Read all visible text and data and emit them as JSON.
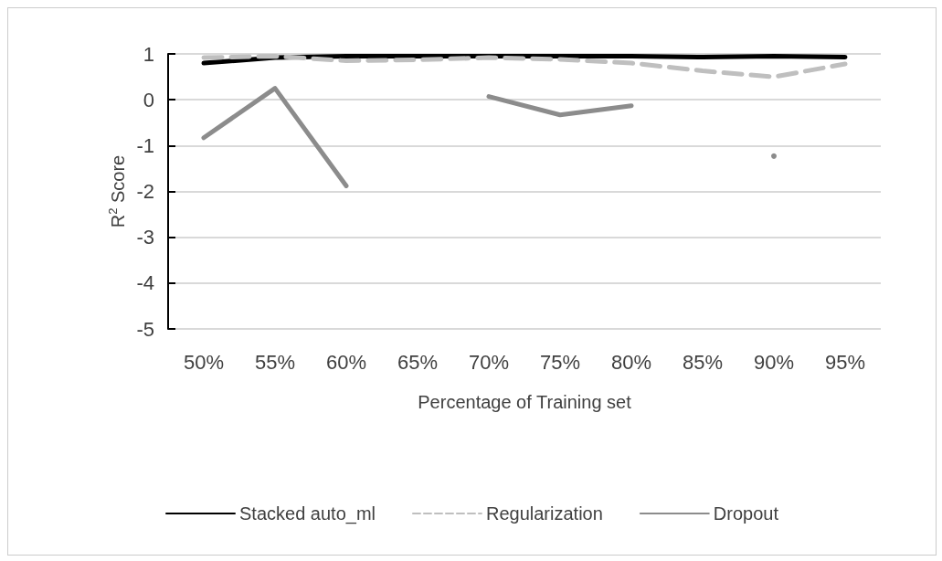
{
  "chart_data": {
    "type": "line",
    "xlabel": "Percentage of Training set",
    "ylabel": "R$^{2}$ Score",
    "categories": [
      "50%",
      "55%",
      "60%",
      "65%",
      "70%",
      "75%",
      "80%",
      "85%",
      "90%",
      "95%"
    ],
    "series": [
      {
        "name": "Stacked auto_ml",
        "color": "#000000",
        "line_style": "solid",
        "values": [
          0.8,
          0.92,
          0.95,
          0.95,
          0.95,
          0.95,
          0.95,
          0.93,
          0.95,
          0.93
        ]
      },
      {
        "name": "Regularization",
        "color": "#bfbfbf",
        "line_style": "dashed",
        "values": [
          0.92,
          0.95,
          0.85,
          0.87,
          0.92,
          0.88,
          0.8,
          0.63,
          0.5,
          0.78
        ]
      },
      {
        "name": "Dropout",
        "color": "#8c8c8c",
        "line_style": "solid",
        "values": [
          -0.83,
          0.25,
          -1.88,
          null,
          0.07,
          -0.33,
          -0.13,
          null,
          -1.23,
          null
        ]
      }
    ],
    "ylim": [
      -5,
      1
    ],
    "yticks": [
      -5,
      -4,
      -3,
      -2,
      -1,
      0,
      1
    ],
    "grid": "y",
    "legend": "bottom",
    "marker": "none"
  }
}
